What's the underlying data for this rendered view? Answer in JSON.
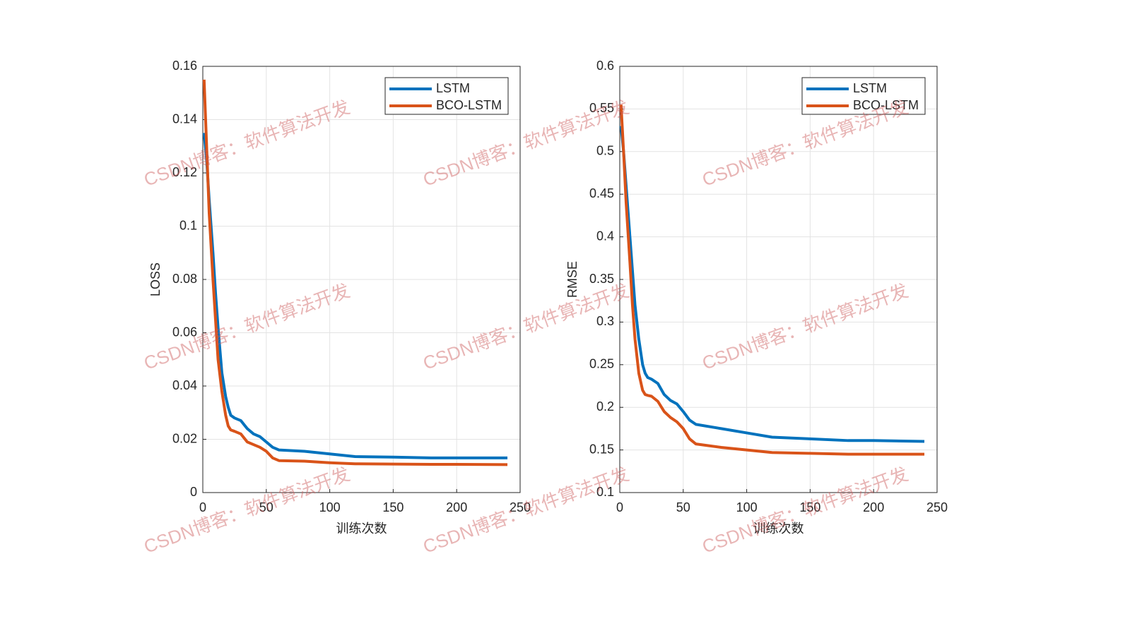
{
  "watermark": "CSDN博客：软件算法开发",
  "chart_data": [
    {
      "type": "line",
      "xlabel": "训练次数",
      "ylabel": "LOSS",
      "xlim": [
        0,
        250
      ],
      "xticks": [
        0,
        50,
        100,
        150,
        200,
        250
      ],
      "ylim": [
        0,
        0.16
      ],
      "yticks": [
        0,
        0.02,
        0.04,
        0.06,
        0.08,
        0.1,
        0.12,
        0.14,
        0.16
      ],
      "grid": true,
      "legend": "northeast",
      "x": [
        1,
        3,
        5,
        8,
        10,
        12,
        15,
        18,
        20,
        22,
        25,
        30,
        35,
        40,
        45,
        50,
        55,
        60,
        80,
        100,
        120,
        150,
        180,
        200,
        240
      ],
      "series": [
        {
          "name": "LSTM",
          "color": "#0072bd",
          "values": [
            0.135,
            0.125,
            0.11,
            0.09,
            0.075,
            0.062,
            0.045,
            0.036,
            0.032,
            0.029,
            0.028,
            0.027,
            0.024,
            0.022,
            0.021,
            0.019,
            0.017,
            0.016,
            0.0155,
            0.0145,
            0.0135,
            0.0133,
            0.013,
            0.013,
            0.013
          ]
        },
        {
          "name": "BCO-LSTM",
          "color": "#d95319",
          "values": [
            0.155,
            0.13,
            0.105,
            0.08,
            0.065,
            0.05,
            0.038,
            0.029,
            0.025,
            0.0235,
            0.023,
            0.022,
            0.019,
            0.018,
            0.017,
            0.0155,
            0.013,
            0.012,
            0.0118,
            0.0112,
            0.0108,
            0.0107,
            0.0106,
            0.0106,
            0.0105
          ]
        }
      ]
    },
    {
      "type": "line",
      "xlabel": "训练次数",
      "ylabel": "RMSE",
      "xlim": [
        0,
        250
      ],
      "xticks": [
        0,
        50,
        100,
        150,
        200,
        250
      ],
      "ylim": [
        0.1,
        0.6
      ],
      "yticks": [
        0.1,
        0.15,
        0.2,
        0.25,
        0.3,
        0.35,
        0.4,
        0.45,
        0.5,
        0.55,
        0.6
      ],
      "grid": true,
      "legend": "northeast",
      "x": [
        1,
        3,
        5,
        8,
        10,
        12,
        15,
        18,
        20,
        22,
        25,
        30,
        35,
        40,
        45,
        50,
        55,
        60,
        80,
        100,
        120,
        150,
        180,
        200,
        240
      ],
      "series": [
        {
          "name": "LSTM",
          "color": "#0072bd",
          "values": [
            0.53,
            0.5,
            0.46,
            0.4,
            0.36,
            0.32,
            0.28,
            0.25,
            0.24,
            0.235,
            0.233,
            0.228,
            0.215,
            0.208,
            0.204,
            0.195,
            0.185,
            0.18,
            0.175,
            0.17,
            0.165,
            0.163,
            0.161,
            0.161,
            0.16
          ]
        },
        {
          "name": "BCO-LSTM",
          "color": "#d95319",
          "values": [
            0.555,
            0.5,
            0.44,
            0.37,
            0.32,
            0.28,
            0.24,
            0.22,
            0.215,
            0.214,
            0.213,
            0.207,
            0.195,
            0.188,
            0.183,
            0.175,
            0.163,
            0.157,
            0.153,
            0.15,
            0.147,
            0.146,
            0.145,
            0.145,
            0.145
          ]
        }
      ]
    }
  ]
}
